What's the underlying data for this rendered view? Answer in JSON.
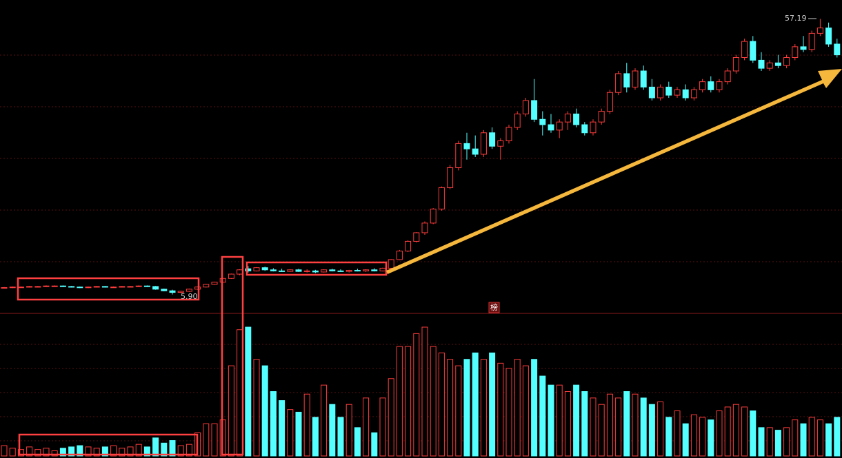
{
  "chart_data": {
    "type": "candlestick",
    "max_label": "57.19",
    "min_label": "5.90",
    "event_label": "榜",
    "ylim": [
      2.4,
      60.7
    ],
    "volume_lim": [
      0,
      100
    ],
    "up_color": "#ff3c3c",
    "down_color": "#54ffff",
    "candles": [
      [
        7.2,
        7.3,
        7.1,
        7.2,
        8
      ],
      [
        7.2,
        7.4,
        7.1,
        7.3,
        6
      ],
      [
        7.3,
        7.4,
        7.2,
        7.3,
        5
      ],
      [
        7.3,
        7.5,
        7.2,
        7.4,
        7
      ],
      [
        7.4,
        7.5,
        7.3,
        7.4,
        5
      ],
      [
        7.4,
        7.6,
        7.3,
        7.5,
        6
      ],
      [
        7.5,
        7.6,
        7.4,
        7.5,
        4
      ],
      [
        7.5,
        7.6,
        7.3,
        7.4,
        6
      ],
      [
        7.4,
        7.5,
        7.2,
        7.3,
        7
      ],
      [
        7.3,
        7.4,
        7.1,
        7.2,
        8
      ],
      [
        7.2,
        7.4,
        7.1,
        7.3,
        7
      ],
      [
        7.3,
        7.5,
        7.2,
        7.4,
        6
      ],
      [
        7.4,
        7.5,
        7.2,
        7.3,
        7
      ],
      [
        7.3,
        7.4,
        7.2,
        7.3,
        8
      ],
      [
        7.3,
        7.5,
        7.2,
        7.4,
        6
      ],
      [
        7.4,
        7.5,
        7.3,
        7.4,
        7
      ],
      [
        7.4,
        7.6,
        7.3,
        7.5,
        9
      ],
      [
        7.5,
        7.6,
        7.3,
        7.4,
        7
      ],
      [
        7.4,
        7.5,
        6.8,
        6.9,
        14
      ],
      [
        6.9,
        7.0,
        6.5,
        6.6,
        10
      ],
      [
        6.6,
        6.8,
        5.9,
        6.3,
        12
      ],
      [
        6.3,
        6.6,
        6.2,
        6.5,
        8
      ],
      [
        6.5,
        7.0,
        6.4,
        6.9,
        9
      ],
      [
        6.9,
        7.4,
        6.8,
        7.3,
        18
      ],
      [
        7.3,
        7.9,
        7.2,
        7.8,
        25
      ],
      [
        7.8,
        8.3,
        7.7,
        8.2,
        25
      ],
      [
        8.2,
        9.0,
        8.1,
        8.9,
        28
      ],
      [
        8.9,
        9.8,
        8.8,
        9.7,
        70
      ],
      [
        9.7,
        10.6,
        9.5,
        10.5,
        98
      ],
      [
        10.7,
        11.2,
        10.0,
        10.3,
        100
      ],
      [
        10.3,
        11.0,
        10.2,
        10.9,
        75
      ],
      [
        10.9,
        11.1,
        10.3,
        10.5,
        70
      ],
      [
        10.5,
        10.8,
        10.2,
        10.3,
        50
      ],
      [
        10.3,
        10.7,
        10.1,
        10.2,
        43
      ],
      [
        10.2,
        10.6,
        10.1,
        10.5,
        36
      ],
      [
        10.5,
        10.7,
        10.1,
        10.2,
        34
      ],
      [
        10.2,
        10.6,
        10.0,
        10.3,
        48
      ],
      [
        10.3,
        10.5,
        9.9,
        10.1,
        30
      ],
      [
        10.1,
        10.6,
        10.0,
        10.5,
        55
      ],
      [
        10.5,
        10.7,
        10.2,
        10.3,
        40
      ],
      [
        10.3,
        10.6,
        10.1,
        10.2,
        30
      ],
      [
        10.2,
        10.5,
        10.0,
        10.4,
        40
      ],
      [
        10.4,
        10.7,
        10.2,
        10.3,
        22
      ],
      [
        10.3,
        10.6,
        10.1,
        10.5,
        45
      ],
      [
        10.5,
        10.8,
        10.2,
        10.3,
        18
      ],
      [
        10.3,
        10.9,
        10.2,
        10.8,
        45
      ],
      [
        10.8,
        12.5,
        10.7,
        12.4,
        60
      ],
      [
        12.4,
        14.2,
        12.3,
        14.0,
        85
      ],
      [
        14.0,
        16.0,
        13.8,
        15.8,
        85
      ],
      [
        15.8,
        17.5,
        15.6,
        17.4,
        95
      ],
      [
        17.4,
        19.5,
        17.0,
        19.2,
        100
      ],
      [
        19.2,
        22.0,
        19.0,
        21.8,
        85
      ],
      [
        21.8,
        26.0,
        21.5,
        25.8,
        80
      ],
      [
        25.8,
        30.0,
        25.5,
        29.5,
        75
      ],
      [
        29.5,
        34.5,
        29.0,
        34.0,
        70
      ],
      [
        34.0,
        36.0,
        31.0,
        33.0,
        75
      ],
      [
        33.0,
        35.5,
        31.5,
        32.0,
        80
      ],
      [
        32.0,
        36.5,
        31.5,
        36.0,
        75
      ],
      [
        36.0,
        37.0,
        33.0,
        33.5,
        80
      ],
      [
        33.5,
        35.0,
        31.0,
        34.5,
        72
      ],
      [
        34.5,
        37.5,
        34.0,
        37.0,
        68
      ],
      [
        37.0,
        40.0,
        36.5,
        39.5,
        75
      ],
      [
        39.5,
        42.5,
        39.0,
        42.0,
        70
      ],
      [
        42.0,
        46.0,
        38.0,
        38.5,
        75
      ],
      [
        38.5,
        40.0,
        35.5,
        37.5,
        62
      ],
      [
        37.5,
        39.5,
        36.0,
        36.5,
        55
      ],
      [
        36.5,
        38.5,
        35.0,
        38.0,
        55
      ],
      [
        38.0,
        40.0,
        36.5,
        39.5,
        50
      ],
      [
        39.5,
        40.5,
        37.0,
        37.5,
        55
      ],
      [
        37.5,
        38.0,
        35.5,
        36.0,
        50
      ],
      [
        36.0,
        38.5,
        35.5,
        38.0,
        45
      ],
      [
        38.0,
        40.5,
        37.5,
        40.0,
        40
      ],
      [
        40.0,
        44.0,
        39.5,
        43.5,
        48
      ],
      [
        43.5,
        47.5,
        43.0,
        47.0,
        45
      ],
      [
        47.0,
        49.0,
        43.5,
        44.5,
        50
      ],
      [
        44.5,
        48.0,
        44.0,
        47.5,
        48
      ],
      [
        47.5,
        48.5,
        44.0,
        44.5,
        45
      ],
      [
        44.5,
        46.0,
        42.0,
        42.5,
        40
      ],
      [
        42.5,
        45.0,
        42.0,
        44.5,
        42
      ],
      [
        44.5,
        45.5,
        42.5,
        43.0,
        30
      ],
      [
        43.0,
        44.5,
        42.5,
        44.0,
        35
      ],
      [
        44.0,
        45.0,
        42.0,
        42.5,
        25
      ],
      [
        42.5,
        44.5,
        42.0,
        44.0,
        32
      ],
      [
        44.0,
        46.0,
        43.5,
        45.5,
        30
      ],
      [
        45.5,
        46.5,
        43.5,
        44.0,
        28
      ],
      [
        44.0,
        46.0,
        43.5,
        45.5,
        35
      ],
      [
        45.5,
        48.0,
        45.0,
        47.5,
        38
      ],
      [
        47.5,
        50.5,
        47.0,
        50.0,
        40
      ],
      [
        50.0,
        53.5,
        49.5,
        53.0,
        38
      ],
      [
        53.0,
        54.0,
        49.0,
        49.5,
        35
      ],
      [
        49.5,
        51.0,
        47.5,
        48.0,
        22
      ],
      [
        48.0,
        49.5,
        47.5,
        49.0,
        22
      ],
      [
        49.0,
        50.5,
        48.0,
        48.5,
        20
      ],
      [
        48.5,
        50.5,
        48.0,
        50.0,
        22
      ],
      [
        50.0,
        52.5,
        49.5,
        52.0,
        28
      ],
      [
        52.0,
        54.0,
        51.0,
        51.5,
        25
      ],
      [
        51.5,
        55.0,
        51.0,
        54.5,
        30
      ],
      [
        54.5,
        57.19,
        54.0,
        55.5,
        28
      ],
      [
        55.5,
        56.5,
        52.0,
        52.5,
        25
      ],
      [
        52.5,
        53.5,
        50.0,
        50.5,
        30
      ]
    ]
  }
}
